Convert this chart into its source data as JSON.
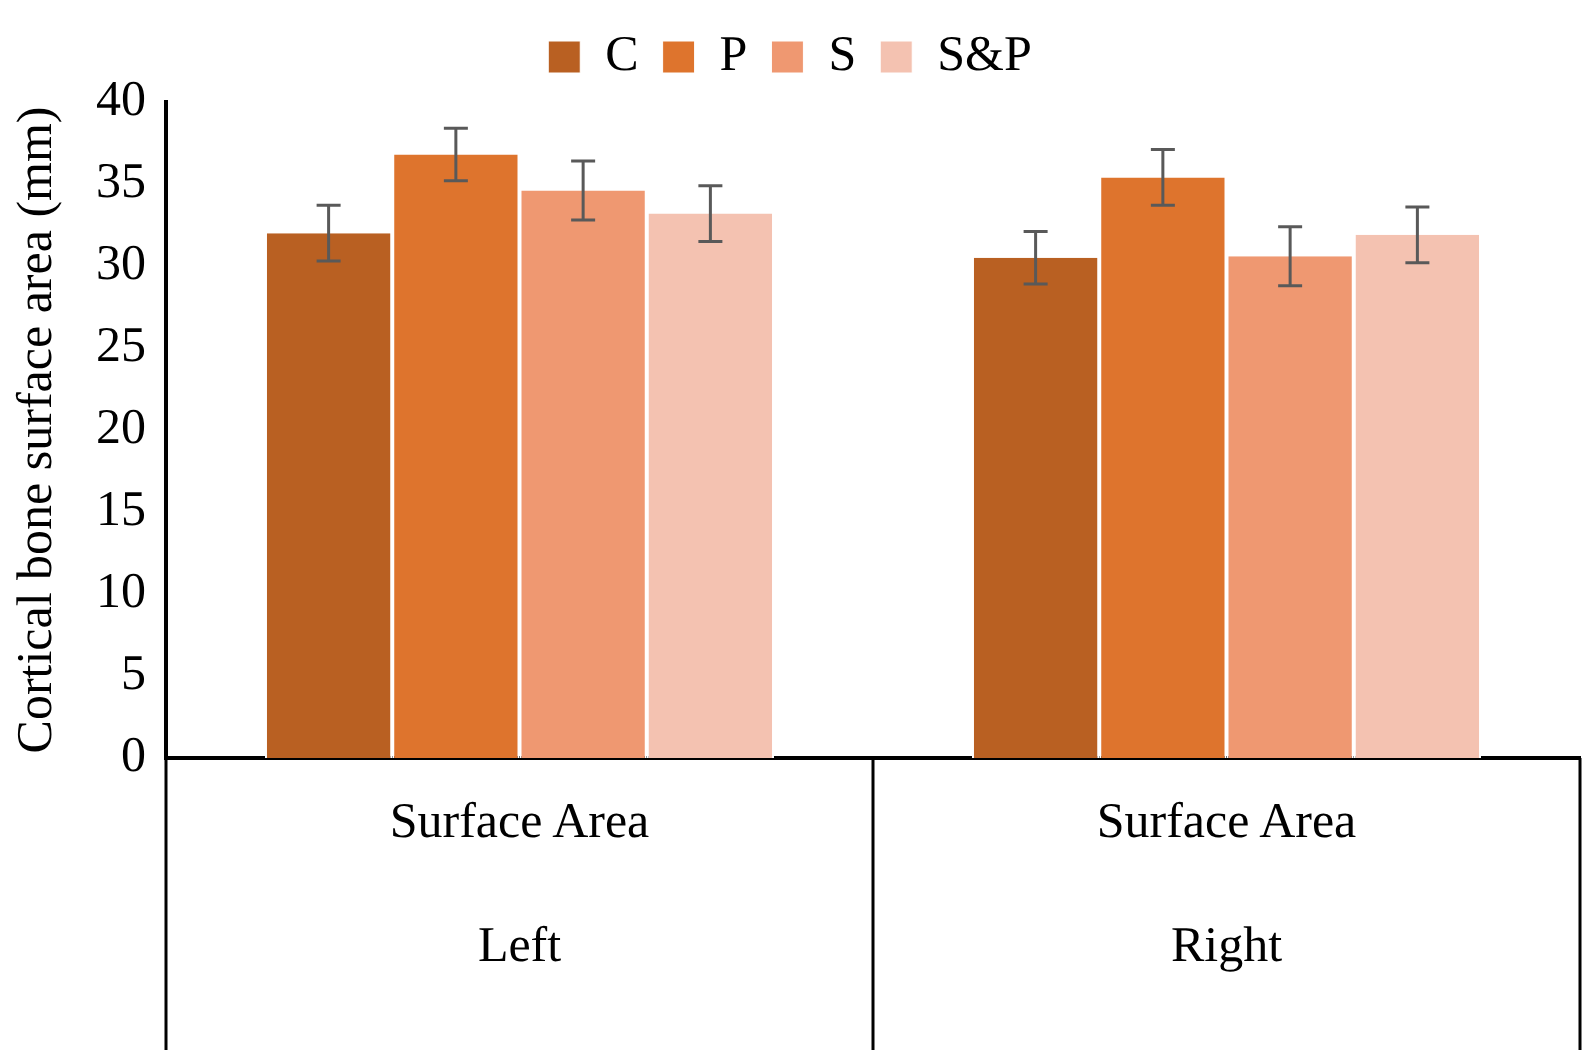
{
  "chart_data": {
    "type": "bar",
    "ylabel": "Cortical bone surface area (mm)",
    "categories": [
      "Surface Area",
      "Surface Area"
    ],
    "annotations": [
      "Left",
      "Right"
    ],
    "series": [
      {
        "name": "C",
        "color": "#b96022",
        "values": [
          32.0,
          30.5
        ],
        "errors": [
          1.7,
          1.6
        ]
      },
      {
        "name": "P",
        "color": "#de742d",
        "values": [
          36.8,
          35.4
        ],
        "errors": [
          1.6,
          1.7
        ]
      },
      {
        "name": "S",
        "color": "#ef9871",
        "values": [
          34.6,
          30.6
        ],
        "errors": [
          1.8,
          1.8
        ]
      },
      {
        "name": "S&P",
        "color": "#f4c2b1",
        "values": [
          33.2,
          31.9
        ],
        "errors": [
          1.7,
          1.7
        ]
      }
    ],
    "ylim": [
      0,
      40
    ],
    "yticks": [
      0,
      5,
      10,
      15,
      20,
      25,
      30,
      35,
      40
    ],
    "grid": false,
    "legend": "top"
  }
}
